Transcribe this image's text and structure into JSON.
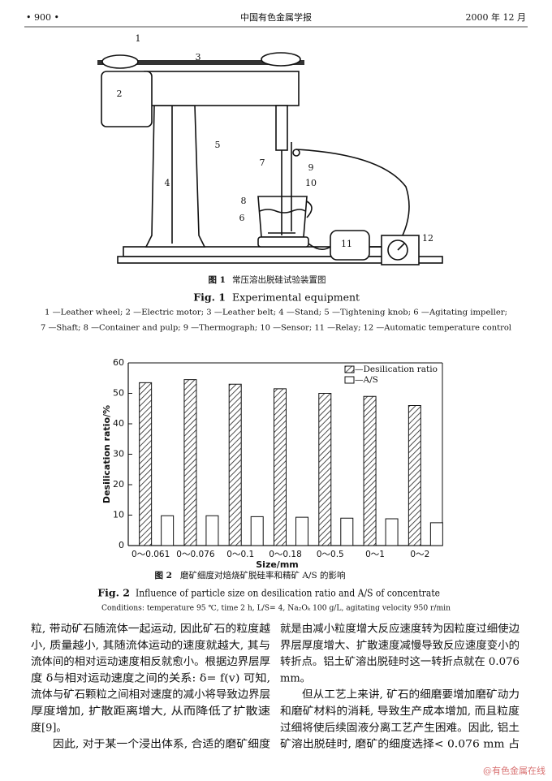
{
  "header": {
    "page": "• 900 •",
    "journal": "中国有色金属学报",
    "date": "2000 年 12 月"
  },
  "figure1": {
    "labels": [
      "1",
      "2",
      "3",
      "4",
      "5",
      "6",
      "7",
      "8",
      "9",
      "10",
      "11",
      "12"
    ],
    "caption_cn_label": "图 1",
    "caption_cn": "常压溶出脱硅试验装置图",
    "caption_en_label": "Fig. 1",
    "caption_en": "Experimental equipment",
    "legend": [
      "1 —Leather wheel; 2 —Electric motor; 3 —Leather belt; 4 —Stand; 5 —Tightening knob; 6 —Agitating impeller;",
      "7 —Shaft; 8 —Container and pulp; 9 —Thermograph; 10 —Sensor; 11 —Relay; 12 —Automatic temperature control"
    ]
  },
  "chart_data": {
    "type": "bar",
    "xlabel": "Size/mm",
    "ylabel": "Desilication ratio/%",
    "categories": [
      "0～0.061",
      "0～0.076",
      "0～0.1",
      "0～0.18",
      "0～0.5",
      "0～1",
      "0～2"
    ],
    "series": [
      {
        "name": "—Desilication ratio",
        "color": "#222222",
        "pattern": "hatch",
        "values": [
          53.5,
          54.5,
          53,
          51.5,
          50,
          49,
          46
        ]
      },
      {
        "name": "—A/S",
        "color": "#ffffff",
        "pattern": "none",
        "values": [
          9.8,
          9.8,
          9.5,
          9.3,
          9,
          8.8,
          7.5
        ]
      }
    ],
    "ylim": [
      0,
      60
    ],
    "yticks": [
      0,
      10,
      20,
      30,
      40,
      50,
      60
    ],
    "grid": false,
    "legend": "upper right",
    "caption_cn_label": "图 2",
    "caption_cn": "磨矿细度对焙烧矿脱硅率和精矿 A/S 的影响",
    "caption_en_label": "Fig. 2",
    "caption_en": "Influence of particle size on desilication ratio and A/S of concentrate",
    "conditions": "Conditions: temperature 95 ℃, time 2 h, L/S= 4, Na₂Oₖ 100 g/L, agitating velocity 950 r/min"
  },
  "body": {
    "left": [
      "粒, 带动矿石随流体一起运动, 因此矿石的粒度越",
      "小, 质量越小, 其随流体运动的速度就越大, 其与",
      "流体间的相对运动速度相反就愈小。根据边界层厚",
      "度 δ与相对运动速度之间的关系: δ= f(v) 可知,",
      "流体与矿石颗粒之间相对速度的减小将导致边界层",
      "厚度增加, 扩散距离增大, 从而降低了扩散速",
      "度[9]。",
      "因此, 对于某一个浸出体系, 合适的磨矿细度"
    ],
    "right": [
      "就是由减小粒度增大反应速度转为因粒度过细使边",
      "界层厚度增大、扩散速度减慢导致反应速度变小的",
      "转折点。铝土矿溶出脱硅时这一转折点就在 0.076",
      "mm。",
      "但从工艺上来讲, 矿石的细磨要增加磨矿动力",
      "和磨矿材料的消耗, 导致生产成本增加, 而且粒度",
      "过细将使后续固液分离工艺产生困难。因此, 铝土",
      "矿溶出脱硅时, 磨矿的细度选择< 0.076 mm 占"
    ]
  },
  "watermark": "@有色金属在线"
}
